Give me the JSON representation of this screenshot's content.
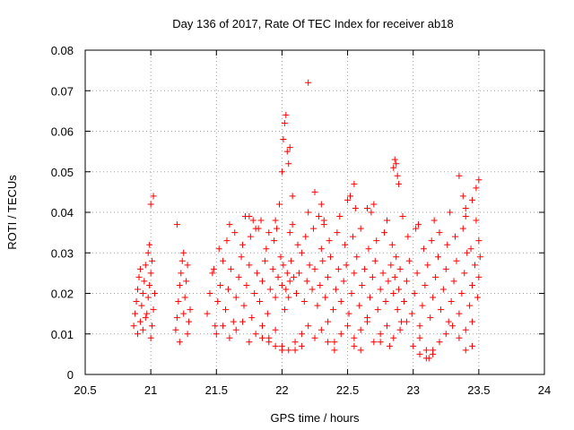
{
  "chart_data": {
    "type": "scatter",
    "title": "Day 136 of 2017, Rate Of TEC Index for receiver ab18",
    "xlabel": "GPS time / hours",
    "ylabel": "ROTI / TECUs",
    "xlim": [
      20.5,
      24
    ],
    "ylim": [
      0,
      0.08
    ],
    "x_ticks": [
      "20.5",
      "21",
      "21.5",
      "22",
      "22.5",
      "23",
      "23.5",
      "24"
    ],
    "y_ticks": [
      "0",
      "0.01",
      "0.02",
      "0.03",
      "0.04",
      "0.05",
      "0.06",
      "0.07",
      "0.08"
    ],
    "grid": true,
    "marker": "+",
    "color": "#ff0000",
    "series": [
      {
        "x": [
          20.87,
          20.88,
          20.89,
          20.9,
          20.91,
          20.92,
          20.93,
          20.94,
          20.95,
          20.96,
          20.97,
          20.98,
          20.99,
          21.0,
          21.01,
          21.02,
          21.03,
          20.9,
          20.92,
          20.94,
          20.96,
          20.98,
          21.0,
          21.02,
          21.01,
          21.0,
          20.99,
          21.19,
          21.2,
          21.21,
          21.22,
          21.23,
          21.24,
          21.25,
          21.26,
          21.27,
          21.28,
          21.29,
          21.3,
          21.2,
          21.22,
          21.25,
          21.28,
          21.43,
          21.45,
          21.47,
          21.49,
          21.51,
          21.53,
          21.55,
          21.57,
          21.59,
          21.61,
          21.63,
          21.65,
          21.67,
          21.69,
          21.71,
          21.73,
          21.75,
          21.77,
          21.79,
          21.81,
          21.83,
          21.85,
          21.87,
          21.89,
          21.91,
          21.93,
          21.95,
          21.97,
          21.99,
          22.0,
          22.01,
          22.02,
          22.03,
          22.04,
          22.05,
          22.06,
          22.07,
          22.09,
          22.11,
          22.13,
          22.15,
          22.17,
          22.19,
          22.21,
          22.23,
          22.25,
          22.27,
          22.29,
          22.31,
          22.33,
          22.35,
          22.37,
          22.39,
          22.41,
          22.43,
          22.45,
          22.47,
          22.49,
          22.51,
          22.53,
          22.55,
          22.57,
          22.59,
          22.61,
          22.63,
          22.65,
          22.67,
          22.69,
          22.71,
          22.73,
          22.75,
          22.77,
          22.79,
          22.81,
          22.83,
          22.85,
          22.86,
          22.87,
          22.88,
          22.89,
          22.9,
          22.91,
          22.93,
          22.95,
          22.97,
          22.99,
          23.01,
          23.03,
          23.05,
          23.07,
          23.09,
          23.11,
          23.13,
          23.15,
          23.17,
          23.19,
          23.21,
          23.23,
          23.25,
          23.27,
          23.29,
          23.31,
          23.33,
          23.35,
          23.37,
          23.39,
          23.41,
          23.43,
          23.45,
          23.47,
          23.49,
          23.5,
          23.51,
          21.5,
          21.55,
          21.6,
          21.65,
          21.7,
          21.75,
          21.8,
          21.85,
          21.9,
          21.95,
          22.0,
          22.05,
          22.1,
          22.15,
          22.2,
          22.25,
          22.3,
          22.35,
          22.4,
          22.45,
          22.5,
          22.55,
          22.6,
          22.65,
          22.7,
          22.75,
          22.8,
          22.85,
          22.9,
          22.95,
          23.0,
          23.05,
          23.1,
          23.15,
          23.2,
          23.25,
          23.3,
          23.35,
          23.4,
          23.45,
          21.52,
          21.58,
          21.64,
          21.7,
          21.76,
          21.82,
          21.88,
          21.94,
          22.06,
          22.12,
          22.18,
          22.24,
          22.3,
          22.36,
          22.42,
          22.48,
          22.54,
          22.6,
          22.66,
          22.72,
          22.78,
          22.84,
          22.96,
          23.02,
          23.08,
          23.14,
          23.2,
          23.26,
          23.32,
          23.38,
          23.44,
          23.5,
          21.48,
          21.6,
          21.72,
          21.84,
          21.96,
          22.08,
          22.2,
          22.32,
          22.44,
          22.56,
          22.68,
          22.8,
          22.92,
          23.04,
          23.16,
          23.28,
          23.4,
          23.48,
          21.95,
          21.98,
          22.0,
          22.01,
          22.02,
          22.03,
          22.04,
          22.05,
          22.06,
          22.08,
          22.2,
          22.25,
          22.28,
          22.3,
          22.32,
          22.5,
          22.52,
          22.55,
          22.85,
          22.86,
          22.87,
          22.88,
          22.89,
          23.35,
          23.38,
          23.4,
          23.45,
          23.48,
          23.5,
          21.75,
          21.78,
          21.8,
          21.9,
          22.65,
          22.7,
          21.85,
          21.9,
          21.95,
          22.0,
          22.1,
          22.15,
          22.35,
          22.4,
          22.55,
          22.6,
          22.75,
          22.82,
          23.05,
          23.1,
          23.12,
          23.15,
          23.4,
          23.45
        ],
        "y": [
          0.012,
          0.015,
          0.018,
          0.021,
          0.024,
          0.013,
          0.017,
          0.02,
          0.023,
          0.027,
          0.015,
          0.019,
          0.022,
          0.025,
          0.028,
          0.016,
          0.02,
          0.01,
          0.026,
          0.011,
          0.014,
          0.03,
          0.042,
          0.044,
          0.012,
          0.009,
          0.032,
          0.011,
          0.014,
          0.018,
          0.022,
          0.025,
          0.028,
          0.015,
          0.019,
          0.023,
          0.027,
          0.013,
          0.016,
          0.037,
          0.008,
          0.03,
          0.01,
          0.015,
          0.02,
          0.025,
          0.012,
          0.018,
          0.022,
          0.028,
          0.016,
          0.021,
          0.026,
          0.013,
          0.019,
          0.024,
          0.029,
          0.017,
          0.022,
          0.027,
          0.014,
          0.02,
          0.025,
          0.018,
          0.023,
          0.028,
          0.015,
          0.021,
          0.026,
          0.019,
          0.024,
          0.029,
          0.022,
          0.027,
          0.016,
          0.021,
          0.025,
          0.019,
          0.023,
          0.028,
          0.024,
          0.02,
          0.025,
          0.03,
          0.018,
          0.023,
          0.027,
          0.021,
          0.026,
          0.017,
          0.022,
          0.028,
          0.019,
          0.024,
          0.029,
          0.016,
          0.021,
          0.026,
          0.018,
          0.023,
          0.027,
          0.015,
          0.02,
          0.025,
          0.029,
          0.017,
          0.022,
          0.026,
          0.014,
          0.019,
          0.024,
          0.028,
          0.016,
          0.021,
          0.025,
          0.018,
          0.023,
          0.027,
          0.02,
          0.024,
          0.029,
          0.016,
          0.021,
          0.026,
          0.013,
          0.018,
          0.023,
          0.028,
          0.015,
          0.02,
          0.025,
          0.012,
          0.017,
          0.022,
          0.027,
          0.014,
          0.019,
          0.024,
          0.029,
          0.016,
          0.021,
          0.026,
          0.013,
          0.018,
          0.023,
          0.028,
          0.015,
          0.02,
          0.025,
          0.03,
          0.017,
          0.022,
          0.027,
          0.019,
          0.024,
          0.029,
          0.01,
          0.012,
          0.009,
          0.011,
          0.013,
          0.008,
          0.01,
          0.012,
          0.009,
          0.011,
          0.007,
          0.006,
          0.008,
          0.01,
          0.012,
          0.009,
          0.011,
          0.013,
          0.008,
          0.01,
          0.012,
          0.009,
          0.011,
          0.013,
          0.008,
          0.01,
          0.012,
          0.009,
          0.011,
          0.013,
          0.007,
          0.005,
          0.004,
          0.006,
          0.008,
          0.01,
          0.012,
          0.009,
          0.011,
          0.013,
          0.031,
          0.033,
          0.035,
          0.032,
          0.034,
          0.036,
          0.031,
          0.033,
          0.035,
          0.032,
          0.034,
          0.036,
          0.031,
          0.033,
          0.035,
          0.032,
          0.034,
          0.036,
          0.031,
          0.033,
          0.035,
          0.032,
          0.034,
          0.036,
          0.031,
          0.033,
          0.035,
          0.032,
          0.034,
          0.036,
          0.031,
          0.033,
          0.026,
          0.037,
          0.039,
          0.038,
          0.036,
          0.037,
          0.04,
          0.038,
          0.039,
          0.041,
          0.04,
          0.038,
          0.039,
          0.037,
          0.038,
          0.04,
          0.039,
          0.038,
          0.038,
          0.042,
          0.05,
          0.058,
          0.062,
          0.064,
          0.055,
          0.052,
          0.056,
          0.044,
          0.072,
          0.045,
          0.039,
          0.042,
          0.037,
          0.043,
          0.044,
          0.047,
          0.051,
          0.053,
          0.052,
          0.049,
          0.047,
          0.049,
          0.044,
          0.041,
          0.043,
          0.046,
          0.048,
          0.039,
          0.038,
          0.036,
          0.035,
          0.041,
          0.042,
          0.009,
          0.008,
          0.007,
          0.006,
          0.006,
          0.007,
          0.008,
          0.006,
          0.007,
          0.006,
          0.008,
          0.007,
          0.009,
          0.006,
          0.004,
          0.005,
          0.006,
          0.007
        ]
      }
    ]
  }
}
